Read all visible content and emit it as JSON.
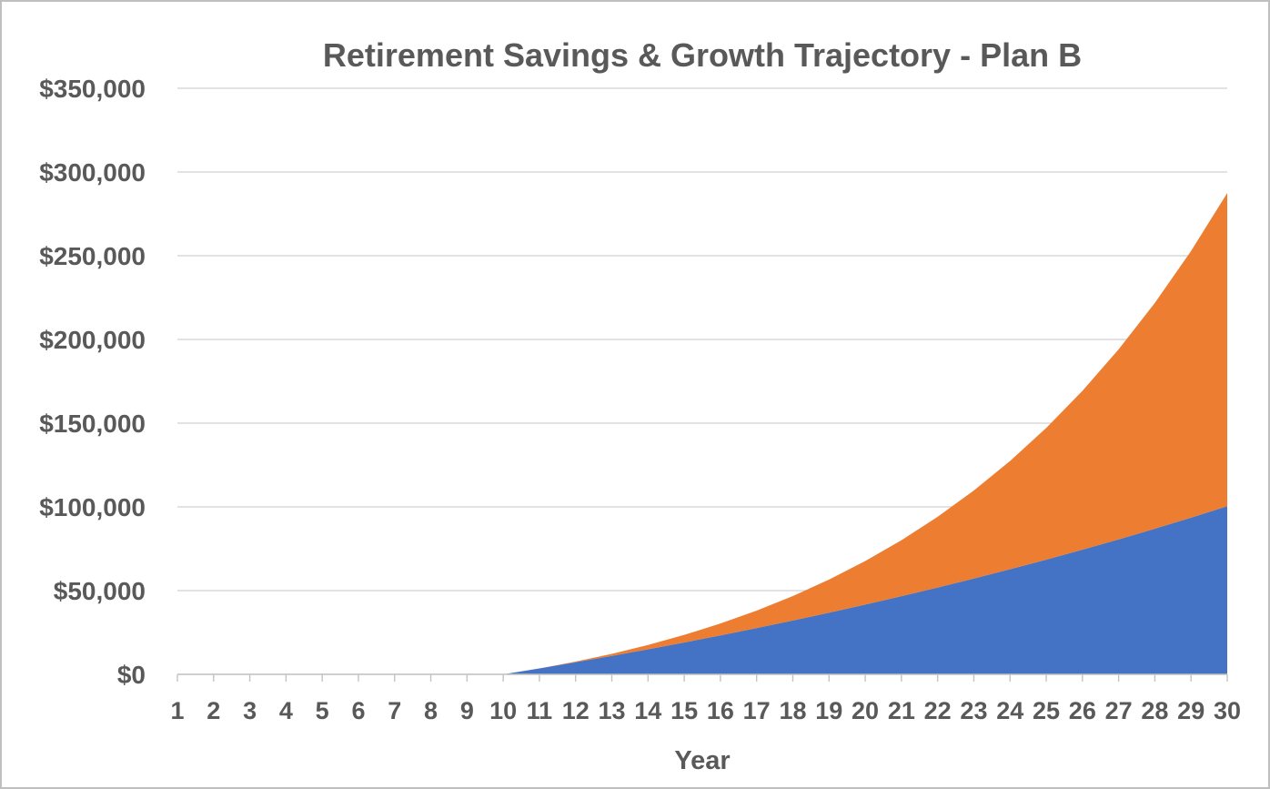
{
  "frame": {
    "background": "#ffffff",
    "border_color": "#bfbfbf"
  },
  "styles": {
    "text_color": "#595959",
    "gridline_color": "#d9d9d9",
    "axis_line_color": "#bfbfbf",
    "tick_color": "#c3c3c3"
  },
  "chart_data": {
    "type": "area",
    "stacked": true,
    "title": "Retirement Savings & Growth Trajectory - Plan B",
    "xlabel": "Year",
    "ylabel": "",
    "legend_position": "none",
    "grid": "horizontal",
    "x_categories": [
      1,
      2,
      3,
      4,
      5,
      6,
      7,
      8,
      9,
      10,
      11,
      12,
      13,
      14,
      15,
      16,
      17,
      18,
      19,
      20,
      21,
      22,
      23,
      24,
      25,
      26,
      27,
      28,
      29,
      30
    ],
    "y_axis": {
      "min": 0,
      "max": 350000,
      "step": 50000,
      "tick_labels": [
        "$0",
        "$50,000",
        "$100,000",
        "$150,000",
        "$200,000",
        "$250,000",
        "$300,000",
        "$350,000"
      ]
    },
    "series": [
      {
        "name": "lower-blue-area",
        "color": "#4472C4",
        "values": [
          0,
          0,
          0,
          0,
          0,
          0,
          0,
          0,
          0,
          0,
          3550,
          7224,
          11027,
          14963,
          19037,
          23253,
          27617,
          32133,
          36808,
          41646,
          46654,
          51837,
          57201,
          62753,
          68500,
          74447,
          80603,
          86974,
          93568,
          100393
        ]
      },
      {
        "name": "upper-orange-area",
        "color": "#ED7D31",
        "values": [
          0,
          0,
          0,
          0,
          0,
          0,
          0,
          0,
          0,
          0,
          0,
          391,
          1228,
          2576,
          4505,
          7095,
          10433,
          14619,
          19762,
          25985,
          33424,
          42232,
          52580,
          64656,
          78671,
          94860,
          113483,
          134833,
          159232,
          187040
        ]
      }
    ],
    "stacked_totals": [
      0,
      0,
      0,
      0,
      0,
      0,
      0,
      0,
      0,
      0,
      3550,
      7615,
      12255,
      17539,
      23542,
      30348,
      38050,
      46752,
      56570,
      67631,
      80078,
      94069,
      109781,
      127409,
      147171,
      169307,
      194086,
      221807,
      252800,
      287433
    ]
  }
}
